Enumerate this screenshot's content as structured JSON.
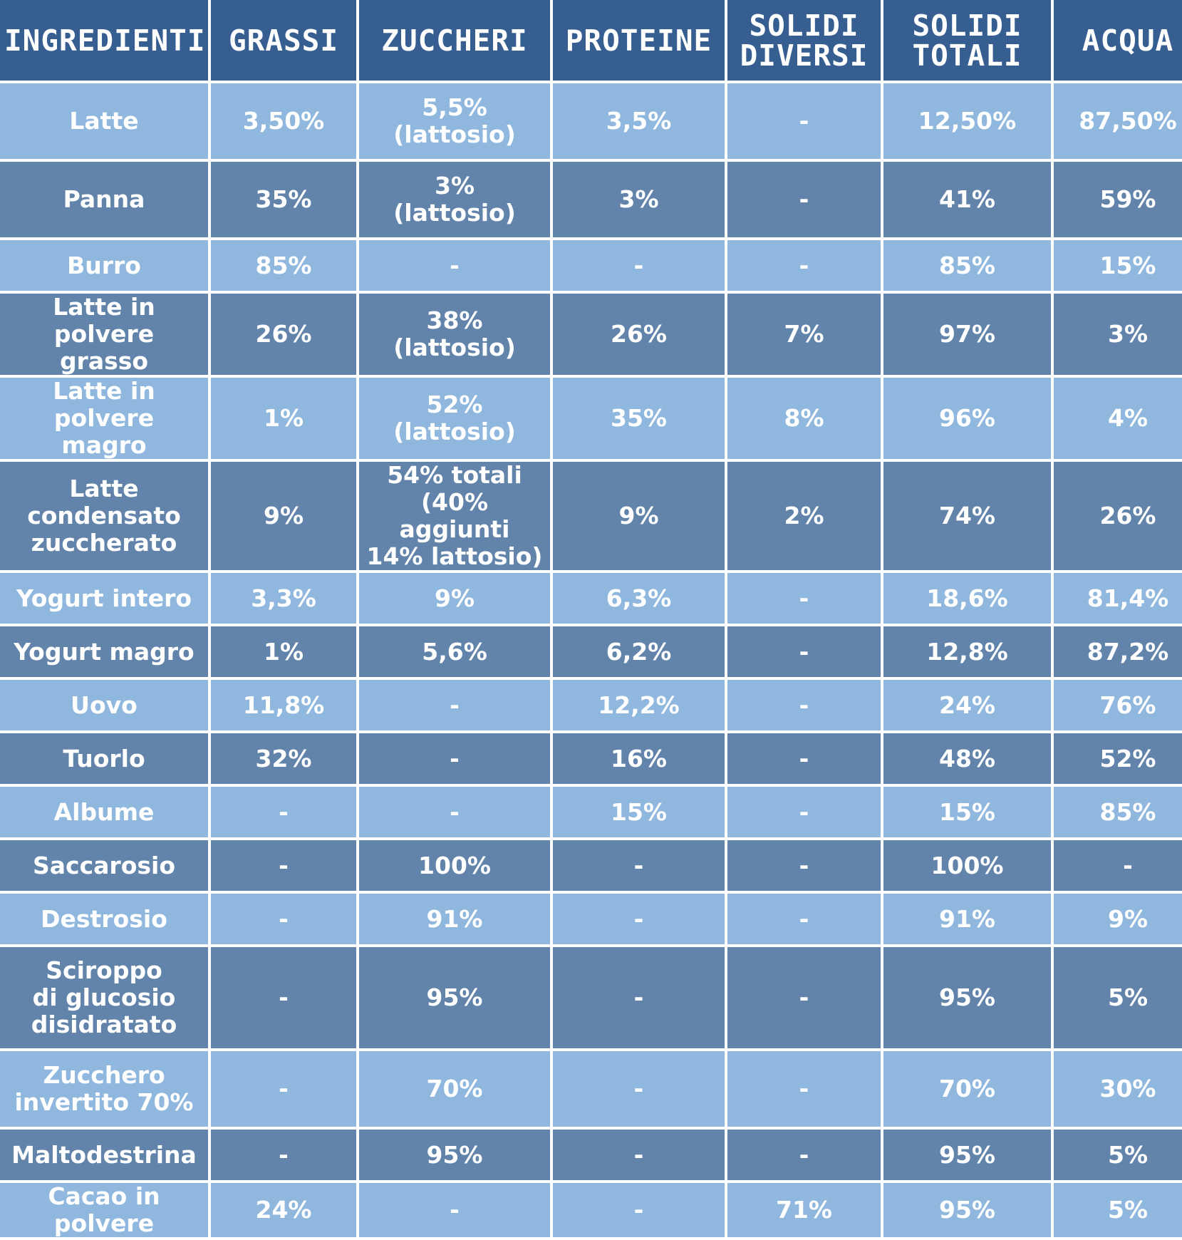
{
  "table": {
    "headers": [
      "INGREDIENTI",
      "GRASSI",
      "ZUCCHERI",
      "PROTEINE",
      "SOLIDI\nDIVERSI",
      "SOLIDI\nTOTALI",
      "ACQUA"
    ],
    "rows": [
      [
        "Latte",
        "3,50%",
        "5,5%\n(lattosio)",
        "3,5%",
        "-",
        "12,50%",
        "87,50%"
      ],
      [
        "Panna",
        "35%",
        "3%\n(lattosio)",
        "3%",
        "-",
        "41%",
        "59%"
      ],
      [
        "Burro",
        "85%",
        "-",
        "-",
        "-",
        "85%",
        "15%"
      ],
      [
        "Latte in polvere\ngrasso",
        "26%",
        "38%\n(lattosio)",
        "26%",
        "7%",
        "97%",
        "3%"
      ],
      [
        "Latte in polvere\nmagro",
        "1%",
        "52%\n(lattosio)",
        "35%",
        "8%",
        "96%",
        "4%"
      ],
      [
        "Latte\ncondensato\nzuccherato",
        "9%",
        "54% totali\n(40% aggiunti\n14% lattosio)",
        "9%",
        "2%",
        "74%",
        "26%"
      ],
      [
        "Yogurt intero",
        "3,3%",
        "9%",
        "6,3%",
        "-",
        "18,6%",
        "81,4%"
      ],
      [
        "Yogurt magro",
        "1%",
        "5,6%",
        "6,2%",
        "-",
        "12,8%",
        "87,2%"
      ],
      [
        "Uovo",
        "11,8%",
        "-",
        "12,2%",
        "-",
        "24%",
        "76%"
      ],
      [
        "Tuorlo",
        "32%",
        "-",
        "16%",
        "-",
        "48%",
        "52%"
      ],
      [
        "Albume",
        "-",
        "-",
        "15%",
        "-",
        "15%",
        "85%"
      ],
      [
        "Saccarosio",
        "-",
        "100%",
        "-",
        "-",
        "100%",
        "-"
      ],
      [
        "Destrosio",
        "-",
        "91%",
        "-",
        "-",
        "91%",
        "9%"
      ],
      [
        "Sciroppo\ndi glucosio\ndisidratato",
        "-",
        "95%",
        "-",
        "-",
        "95%",
        "5%"
      ],
      [
        "Zucchero\ninvertito 70%",
        "-",
        "70%",
        "-",
        "-",
        "70%",
        "30%"
      ],
      [
        "Maltodestrina",
        "-",
        "95%",
        "-",
        "-",
        "95%",
        "5%"
      ],
      [
        "Cacao in polvere",
        "24%",
        "-",
        "-",
        "71%",
        "95%",
        "5%"
      ]
    ]
  },
  "colors": {
    "header_bg": "#365e90",
    "row_light": "#90b8de",
    "row_dark": "#6284aa",
    "text": "#ffffff",
    "grid": "#ffffff"
  }
}
